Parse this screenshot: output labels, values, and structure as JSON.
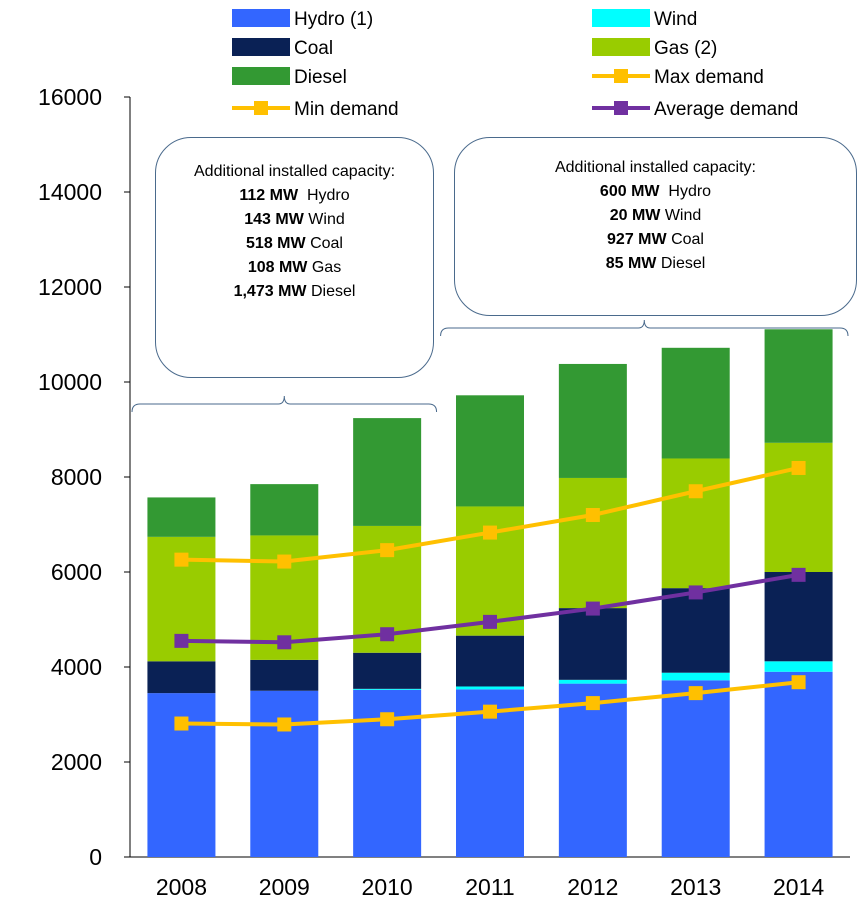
{
  "chart_data": {
    "type": "bar",
    "stacked": true,
    "categories": [
      "2008",
      "2009",
      "2010",
      "2011",
      "2012",
      "2013",
      "2014"
    ],
    "ylim": [
      0,
      16000
    ],
    "yticks": [
      0,
      2000,
      4000,
      6000,
      8000,
      10000,
      12000,
      14000,
      16000
    ],
    "grid": false,
    "legend_position": "top",
    "series": [
      {
        "name": "Hydro (1)",
        "kind": "bar",
        "color": "#3366ff",
        "values": [
          3450,
          3500,
          3520,
          3530,
          3650,
          3720,
          3900
        ]
      },
      {
        "name": "Wind",
        "kind": "bar",
        "color": "#00ffff",
        "values": [
          0,
          0,
          20,
          60,
          80,
          160,
          220
        ]
      },
      {
        "name": "Coal",
        "kind": "bar",
        "color": "#0a2155",
        "values": [
          670,
          650,
          760,
          1070,
          1510,
          1780,
          1880
        ]
      },
      {
        "name": "Gas (2)",
        "kind": "bar",
        "color": "#99cc00",
        "values": [
          2620,
          2620,
          2670,
          2720,
          2740,
          2730,
          2720
        ]
      },
      {
        "name": "Diesel",
        "kind": "bar",
        "color": "#339933",
        "values": [
          830,
          1080,
          2270,
          2340,
          2400,
          2330,
          2390
        ]
      },
      {
        "name": "Max demand",
        "kind": "line",
        "color": "#ffc000",
        "values": [
          6260,
          6220,
          6460,
          6830,
          7200,
          7700,
          8190
        ]
      },
      {
        "name": "Min demand",
        "kind": "line",
        "color": "#ffc000",
        "values": [
          2810,
          2790,
          2900,
          3060,
          3240,
          3450,
          3680
        ]
      },
      {
        "name": "Average demand",
        "kind": "line",
        "color": "#7030a0",
        "values": [
          4550,
          4520,
          4690,
          4950,
          5230,
          5570,
          5940
        ]
      }
    ],
    "annotations": [
      {
        "heading": "Additional installed capacity:",
        "years": [
          "2008",
          "2010"
        ],
        "lines": [
          {
            "value": "112 MW",
            "label": "Hydro"
          },
          {
            "value": "143 MW",
            "label": "Wind"
          },
          {
            "value": "518 MW",
            "label": "Coal"
          },
          {
            "value": "108 MW",
            "label": "Gas"
          },
          {
            "value": "1,473 MW",
            "label": "Diesel"
          }
        ]
      },
      {
        "heading": "Additional installed capacity:",
        "years": [
          "2011",
          "2014"
        ],
        "lines": [
          {
            "value": "600 MW",
            "label": "Hydro"
          },
          {
            "value": "20 MW",
            "label": "Wind"
          },
          {
            "value": "927 MW",
            "label": "Coal"
          },
          {
            "value": "85 MW",
            "label": "Diesel"
          }
        ]
      }
    ]
  },
  "legend": [
    {
      "label": "Hydro (1)",
      "kind": "box",
      "color": "#3366ff"
    },
    {
      "label": "Wind",
      "kind": "box",
      "color": "#00ffff"
    },
    {
      "label": "Coal",
      "kind": "box",
      "color": "#0a2155"
    },
    {
      "label": "Gas (2)",
      "kind": "box",
      "color": "#99cc00"
    },
    {
      "label": "Diesel",
      "kind": "box",
      "color": "#339933"
    },
    {
      "label": "Max demand",
      "kind": "line",
      "color": "#ffc000"
    },
    {
      "label": "Min demand",
      "kind": "line",
      "color": "#ffc000"
    },
    {
      "label": "Average demand",
      "kind": "line",
      "color": "#7030a0"
    }
  ]
}
